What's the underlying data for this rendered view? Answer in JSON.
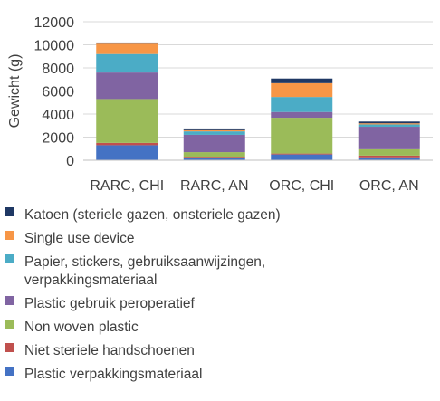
{
  "chart_data": {
    "type": "bar",
    "stacked": true,
    "ylabel": "Gewicht (g)",
    "xlabel": "",
    "title": "",
    "ylim": [
      0,
      12000
    ],
    "yticks": [
      0,
      2000,
      4000,
      6000,
      8000,
      10000,
      12000
    ],
    "grid": true,
    "legend_position": "bottom",
    "categories": [
      "RARC, CHI",
      "RARC, AN",
      "ORC, CHI",
      "ORC, AN"
    ],
    "series": [
      {
        "name": "Plastic verpakkingsmateriaal",
        "color": "#4472C4",
        "values": [
          1300,
          200,
          500,
          250
        ]
      },
      {
        "name": "Niet steriele handschoenen",
        "color": "#C0504D",
        "values": [
          200,
          100,
          80,
          150
        ]
      },
      {
        "name": "Non woven plastic",
        "color": "#9BBB59",
        "values": [
          3800,
          400,
          3100,
          550
        ]
      },
      {
        "name": "Plastic gebruik peroperatief",
        "color": "#8064A2",
        "values": [
          2300,
          1500,
          500,
          1950
        ]
      },
      {
        "name": "Papier, stickers, gebruiksaanwijzingen, verpakkingsmateriaal",
        "color": "#4BACC6",
        "values": [
          1600,
          300,
          1300,
          200
        ]
      },
      {
        "name": "Single use device",
        "color": "#F79646",
        "values": [
          900,
          100,
          1200,
          100
        ]
      },
      {
        "name": "Katoen (steriele gazen, onsteriele gazen)",
        "color": "#1F3864",
        "values": [
          100,
          150,
          400,
          150
        ]
      }
    ]
  }
}
